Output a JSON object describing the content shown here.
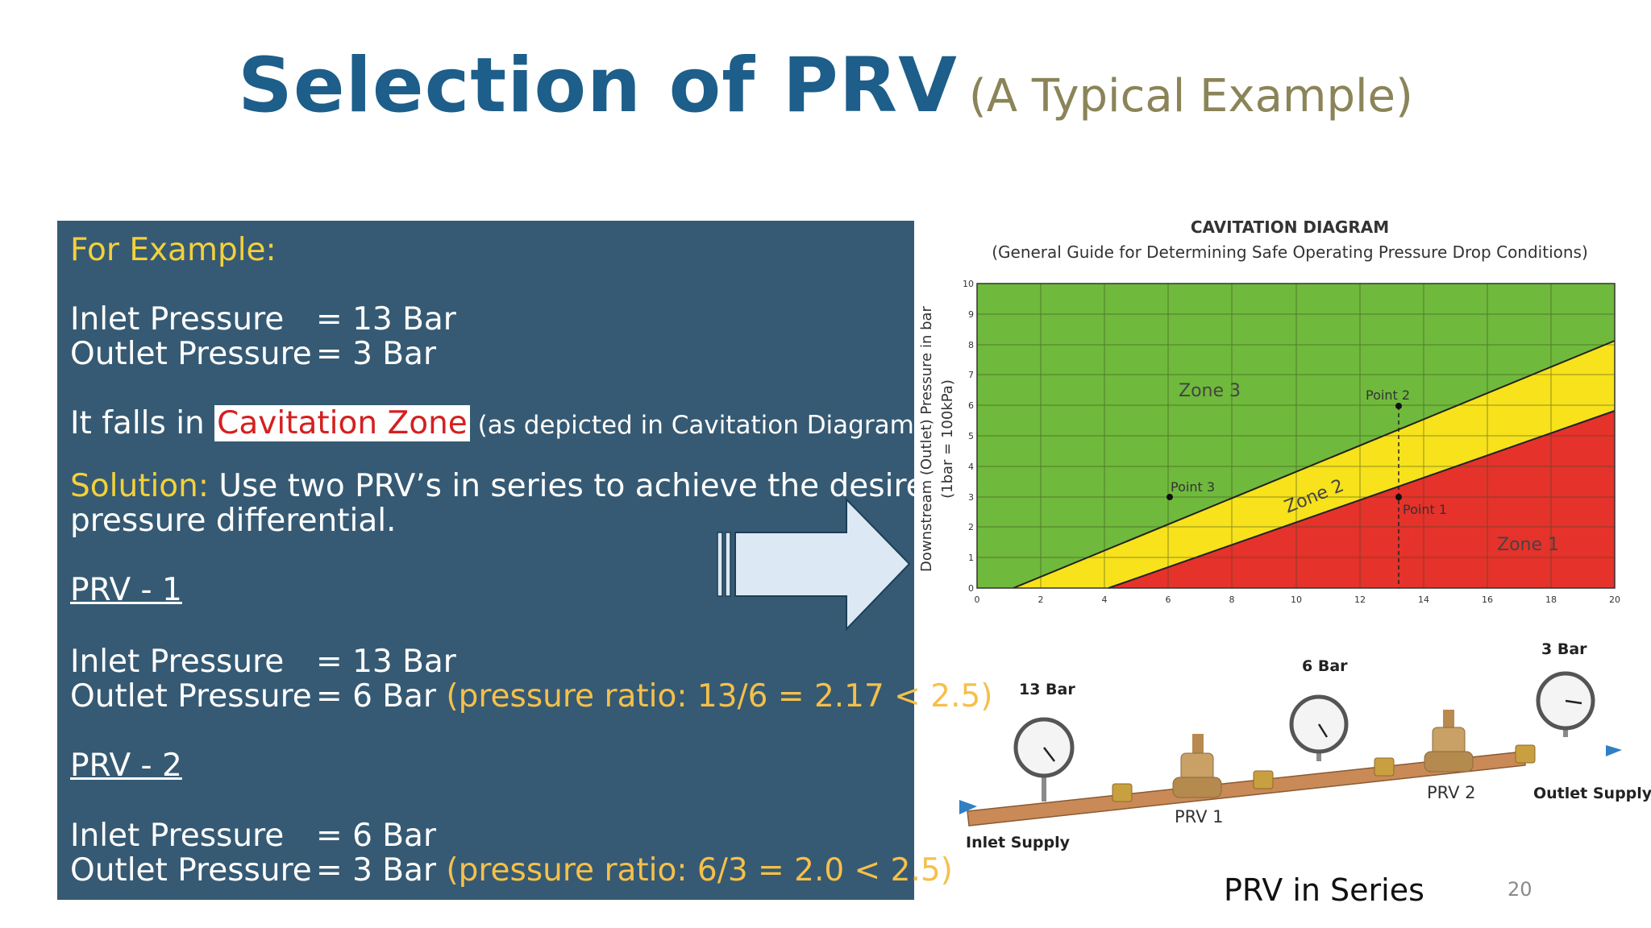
{
  "title": {
    "main": "Selection of PRV",
    "sub": "(A Typical Example)"
  },
  "panel": {
    "heading": "For Example:",
    "inlet_label": "Inlet Pressure",
    "inlet_value": "= 13 Bar",
    "outlet_label": "Outlet Pressure",
    "outlet_value": "= 3 Bar",
    "falls_text": "It falls in ",
    "cavitation_zone": "Cavitation Zone",
    "depicted_note": " (as depicted in Cavitation Diagram)",
    "solution_label": "Solution:",
    "solution_text": " Use two PRV’s in series to achieve the desired",
    "solution_text2": "pressure differential.",
    "prv1": {
      "heading": "PRV - 1",
      "inlet_label": "Inlet Pressure",
      "inlet_value": "= 13 Bar",
      "outlet_label": "Outlet Pressure",
      "outlet_value": "= 6 Bar ",
      "ratio": "(pressure ratio: 13/6 = 2.17 < 2.5)"
    },
    "prv2": {
      "heading": "PRV - 2",
      "inlet_label": "Inlet Pressure",
      "inlet_value": "= 6 Bar",
      "outlet_label": "Outlet Pressure",
      "outlet_value": "= 3 Bar ",
      "ratio": "(pressure ratio: 6/3 = 2.0 < 2.5)"
    }
  },
  "cavitation": {
    "title": "CAVITATION DIAGRAM",
    "subtitle": "(General Guide for Determining Safe Operating Pressure Drop Conditions)",
    "ylabel1": "Downstream (Outlet) Pressure in bar",
    "ylabel2": "(1bar = 100kPa)",
    "x_ticks": [
      "0",
      "2",
      "4",
      "6",
      "8",
      "10",
      "12",
      "14",
      "16",
      "18",
      "20"
    ],
    "y_ticks": [
      "0",
      "1",
      "2",
      "3",
      "4",
      "5",
      "6",
      "7",
      "8",
      "9",
      "10"
    ],
    "zone3": "Zone  3",
    "zone2": "Zone  2",
    "zone1": "Zone  1",
    "point1": "Point  1",
    "point2": "Point  2",
    "point3": "Point  3",
    "colors": {
      "green": "#6fb93c",
      "yellow": "#f7e21b",
      "red": "#e5322b"
    }
  },
  "series": {
    "gauge1": "13 Bar",
    "gauge2": "6 Bar",
    "gauge3": "3 Bar",
    "prv1": "PRV 1",
    "prv2": "PRV 2",
    "inlet": "Inlet Supply",
    "outlet": "Outlet Supply"
  },
  "caption": "PRV in Series",
  "page_number": "20"
}
